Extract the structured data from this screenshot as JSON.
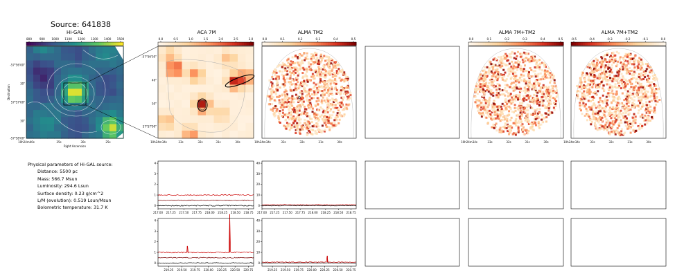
{
  "page_title": "Source: 641838",
  "panels": {
    "higal": {
      "title": "Hi-GAL",
      "colorbar_ticks": [
        "800",
        "900",
        "1000",
        "1100",
        "1200",
        "1300",
        "1400",
        "1500"
      ],
      "y_ticks": [
        "-57°56'00\"",
        "30\"",
        "57°57'00\"",
        "30\"",
        "-57°58'00\""
      ],
      "x_ticks": [
        "10h24m40s",
        "35s",
        "30s",
        "25s"
      ],
      "xlabel": "Right Ascension",
      "ylabel": "Declination"
    },
    "aca7m": {
      "title": "ACA 7M",
      "colorbar_ticks": [
        "0.0",
        "0.5",
        "1.0",
        "1.5",
        "2.0",
        "2.5",
        "3.0"
      ],
      "y_ticks": [
        "-57°56'50\"",
        "40\"",
        "50\"",
        "57°57'00\""
      ],
      "x_ticks": [
        "10h24m34s",
        "33s",
        "32s",
        "31s",
        "30s"
      ]
    },
    "almatm2": {
      "title": "ALMA TM2",
      "colorbar_ticks": [
        "0.0",
        "0.1",
        "0.2",
        "0.3",
        "0.4",
        "0.5"
      ],
      "x_ticks": [
        "10h24m34s",
        "33s",
        "32s",
        "31s",
        "30s"
      ]
    },
    "alma_7m_tm2_a": {
      "title": "ALMA 7M+TM2",
      "colorbar_ticks": [
        "0.0",
        "0.1",
        "0.2",
        "0.3",
        "0.4",
        "0.5"
      ],
      "x_ticks": [
        "10h24m34s",
        "33s",
        "32s",
        "31s",
        "30s"
      ]
    },
    "alma_7m_tm2_b": {
      "title": "ALMA 7M+TM2",
      "colorbar_ticks": [
        "-0.5",
        "-0.4",
        "-0.3",
        "-0.2",
        "-0.1",
        "0.0"
      ],
      "x_ticks": [
        "10h24m34s",
        "33s",
        "32s",
        "31s",
        "30s"
      ]
    }
  },
  "physical_parameters": {
    "heading": "Physical parameters of Hi-GAL source:",
    "lines": [
      "Distance: 5500 pc",
      "Mass: 566.7 Msun",
      "Luminosity: 294.6 Lsun",
      "Surface density: 0.23 g/cm^2",
      "L/M (evolution): 0.519 Lsun/Msun",
      "Bolometric temperature: 31.7 K"
    ]
  },
  "chart_data": [
    {
      "type": "line",
      "panel": "spectrum-aca-upper",
      "x_ticks": [
        "217.00",
        "217.25",
        "217.50",
        "217.75",
        "218.00",
        "218.25",
        "218.50",
        "218.75"
      ],
      "xlim": [
        217.0,
        218.85
      ],
      "y_ticks": [
        "0",
        "1",
        "2",
        "3",
        "4"
      ],
      "ylim": [
        -0.3,
        4.2
      ],
      "series": [
        {
          "baseline": 1.0,
          "noise": 0.05,
          "color": "#cc0000",
          "lines": []
        },
        {
          "baseline": 0.5,
          "noise": 0.04,
          "color": "#7a0000",
          "lines": []
        },
        {
          "baseline": 0.0,
          "noise": 0.05,
          "color": "#000000",
          "lines": []
        }
      ]
    },
    {
      "type": "line",
      "panel": "spectrum-tm2-upper",
      "x_ticks": [
        "217.00",
        "217.25",
        "217.50",
        "217.75",
        "218.00",
        "218.25",
        "218.50",
        "218.75"
      ],
      "xlim": [
        217.0,
        218.85
      ],
      "y_ticks": [
        "0",
        "10",
        "20",
        "30",
        "40"
      ],
      "ylim": [
        -3,
        42
      ],
      "series": [
        {
          "baseline": 0.8,
          "noise": 0.3,
          "color": "#cc0000",
          "lines": []
        },
        {
          "baseline": 0.0,
          "noise": 0.3,
          "color": "#000000",
          "lines": []
        }
      ]
    },
    {
      "type": "line",
      "panel": "spectrum-aca-lower",
      "x_ticks": [
        "219.25",
        "219.50",
        "219.75",
        "220.00",
        "220.25",
        "220.50",
        "220.75"
      ],
      "xlim": [
        219.05,
        220.85
      ],
      "y_ticks": [
        "0",
        "1",
        "2",
        "3",
        "4"
      ],
      "ylim": [
        -0.3,
        4.2
      ],
      "series": [
        {
          "baseline": 1.0,
          "noise": 0.05,
          "color": "#cc0000",
          "lines": [
            {
              "x": 219.6,
              "height": 0.6
            },
            {
              "x": 220.4,
              "height": 3.6
            }
          ]
        },
        {
          "baseline": 0.5,
          "noise": 0.04,
          "color": "#7a0000",
          "lines": []
        },
        {
          "baseline": 0.0,
          "noise": 0.05,
          "color": "#000000",
          "lines": []
        }
      ]
    },
    {
      "type": "line",
      "panel": "spectrum-tm2-lower",
      "x_ticks": [
        "219.25",
        "219.50",
        "219.75",
        "220.00",
        "220.25",
        "220.50",
        "220.75"
      ],
      "xlim": [
        219.05,
        220.85
      ],
      "y_ticks": [
        "0",
        "10",
        "20",
        "30",
        "40"
      ],
      "ylim": [
        -3,
        42
      ],
      "series": [
        {
          "baseline": 0.8,
          "noise": 0.3,
          "color": "#cc0000",
          "lines": [
            {
              "x": 220.3,
              "height": 6.0
            }
          ]
        },
        {
          "baseline": 0.0,
          "noise": 0.3,
          "color": "#000000",
          "lines": []
        }
      ]
    }
  ]
}
